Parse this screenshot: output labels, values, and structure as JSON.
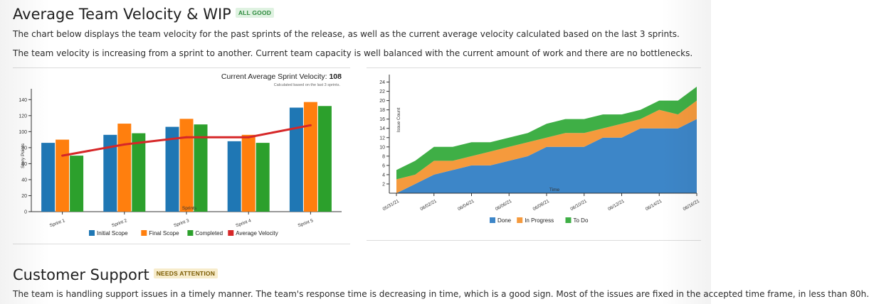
{
  "velocity_section": {
    "title": "Average Team Velocity & WIP",
    "badge": "ALL GOOD",
    "badge_color": "#2e8b3e",
    "badge_bg": "#dff2e1",
    "para1": "The chart below displays the team velocity for the past sprints of the release, as well as the current average velocity calculated based on the last 3 sprints.",
    "para2": "The team velocity is increasing from a sprint to another. Current team capacity is well balanced with the current amount of work and there are no bottlenecks."
  },
  "support_section": {
    "title": "Customer Support",
    "badge": "NEEDS ATTENTION",
    "badge_color": "#7a5a00",
    "badge_bg": "#f7eccb",
    "para1": "The team is handling support issues in a timely manner. The team's response time is decreasing in time, which is a good sign. Most of the issues are fixed in the accepted time frame, in less than 80h."
  },
  "chart_data": [
    {
      "type": "bar",
      "title_prefix": "Current Average Sprint Velocity: ",
      "title_value": "108",
      "subtitle": "Calculated based on the last 3 sprints.",
      "xlabel": "Sprints",
      "ylabel": "Story Points",
      "ylim": [
        0,
        150
      ],
      "yticks": [
        0,
        20,
        40,
        60,
        80,
        100,
        120,
        140
      ],
      "categories": [
        "Sprint 1",
        "Sprint 2",
        "Sprint 3",
        "Sprint 4",
        "Sprint 5"
      ],
      "series": [
        {
          "name": "Initial Scope",
          "color": "#1f77b4",
          "values": [
            86,
            96,
            106,
            88,
            130
          ]
        },
        {
          "name": "Final Scope",
          "color": "#ff7f0e",
          "values": [
            90,
            110,
            116,
            96,
            137
          ]
        },
        {
          "name": "Completed",
          "color": "#2ca02c",
          "values": [
            70,
            98,
            109,
            86,
            132
          ]
        }
      ],
      "line_series": {
        "name": "Average Velocity",
        "color": "#d62728",
        "values": [
          70,
          84,
          93,
          93,
          108
        ]
      },
      "legend_position": "bottom",
      "grid": false
    },
    {
      "type": "area",
      "xlabel": "Time",
      "ylabel": "Issue Count",
      "ylim": [
        0,
        25
      ],
      "yticks": [
        2,
        4,
        6,
        8,
        10,
        12,
        14,
        16,
        18,
        20,
        22,
        24
      ],
      "x": [
        "05/31/21",
        "06/01/21",
        "06/02/21",
        "06/03/21",
        "06/04/21",
        "06/05/21",
        "06/06/21",
        "06/07/21",
        "06/08/21",
        "06/09/21",
        "06/10/21",
        "06/11/21",
        "06/12/21",
        "06/13/21",
        "06/14/21",
        "06/15/21",
        "06/16/21"
      ],
      "xtick_labels": [
        "05/31/21",
        "06/02/21",
        "06/04/21",
        "06/06/21",
        "06/08/21",
        "06/10/21",
        "06/12/21",
        "06/14/21",
        "06/16/21"
      ],
      "series": [
        {
          "name": "Done",
          "color": "#3d86c8",
          "values": [
            0,
            2,
            4,
            5,
            6,
            6,
            7,
            8,
            10,
            10,
            10,
            12,
            12,
            14,
            14,
            14,
            16
          ]
        },
        {
          "name": "In Progress",
          "color": "#f59a3d",
          "values": [
            3,
            2,
            3,
            2,
            2,
            3,
            3,
            3,
            2,
            3,
            3,
            2,
            3,
            2,
            4,
            3,
            4
          ]
        },
        {
          "name": "To Do",
          "color": "#3faf46",
          "values": [
            2,
            3,
            3,
            3,
            3,
            2,
            2,
            2,
            3,
            3,
            3,
            3,
            2,
            2,
            2,
            3,
            3
          ]
        }
      ],
      "legend_position": "bottom",
      "grid": false
    }
  ]
}
